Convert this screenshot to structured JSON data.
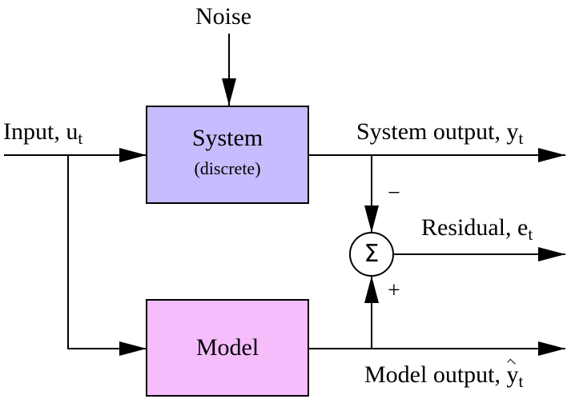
{
  "colors": {
    "system_fill": "#c5bdfd",
    "model_fill": "#f5bdfb",
    "stroke": "#000000",
    "background": "#ffffff"
  },
  "labels": {
    "noise": "Noise",
    "input": "Input, u",
    "input_sub": "t",
    "system_output": "System output, y",
    "system_output_sub": "t",
    "residual": "Residual, e",
    "residual_sub": "t",
    "model_output": "Model output, ",
    "model_output_var": "y",
    "model_output_sub": "t",
    "minus": "−",
    "plus": "+"
  },
  "blocks": {
    "system": {
      "title": "System",
      "subtitle": "(discrete)"
    },
    "model": {
      "title": "Model"
    },
    "sum": {
      "symbol": "Σ"
    }
  }
}
